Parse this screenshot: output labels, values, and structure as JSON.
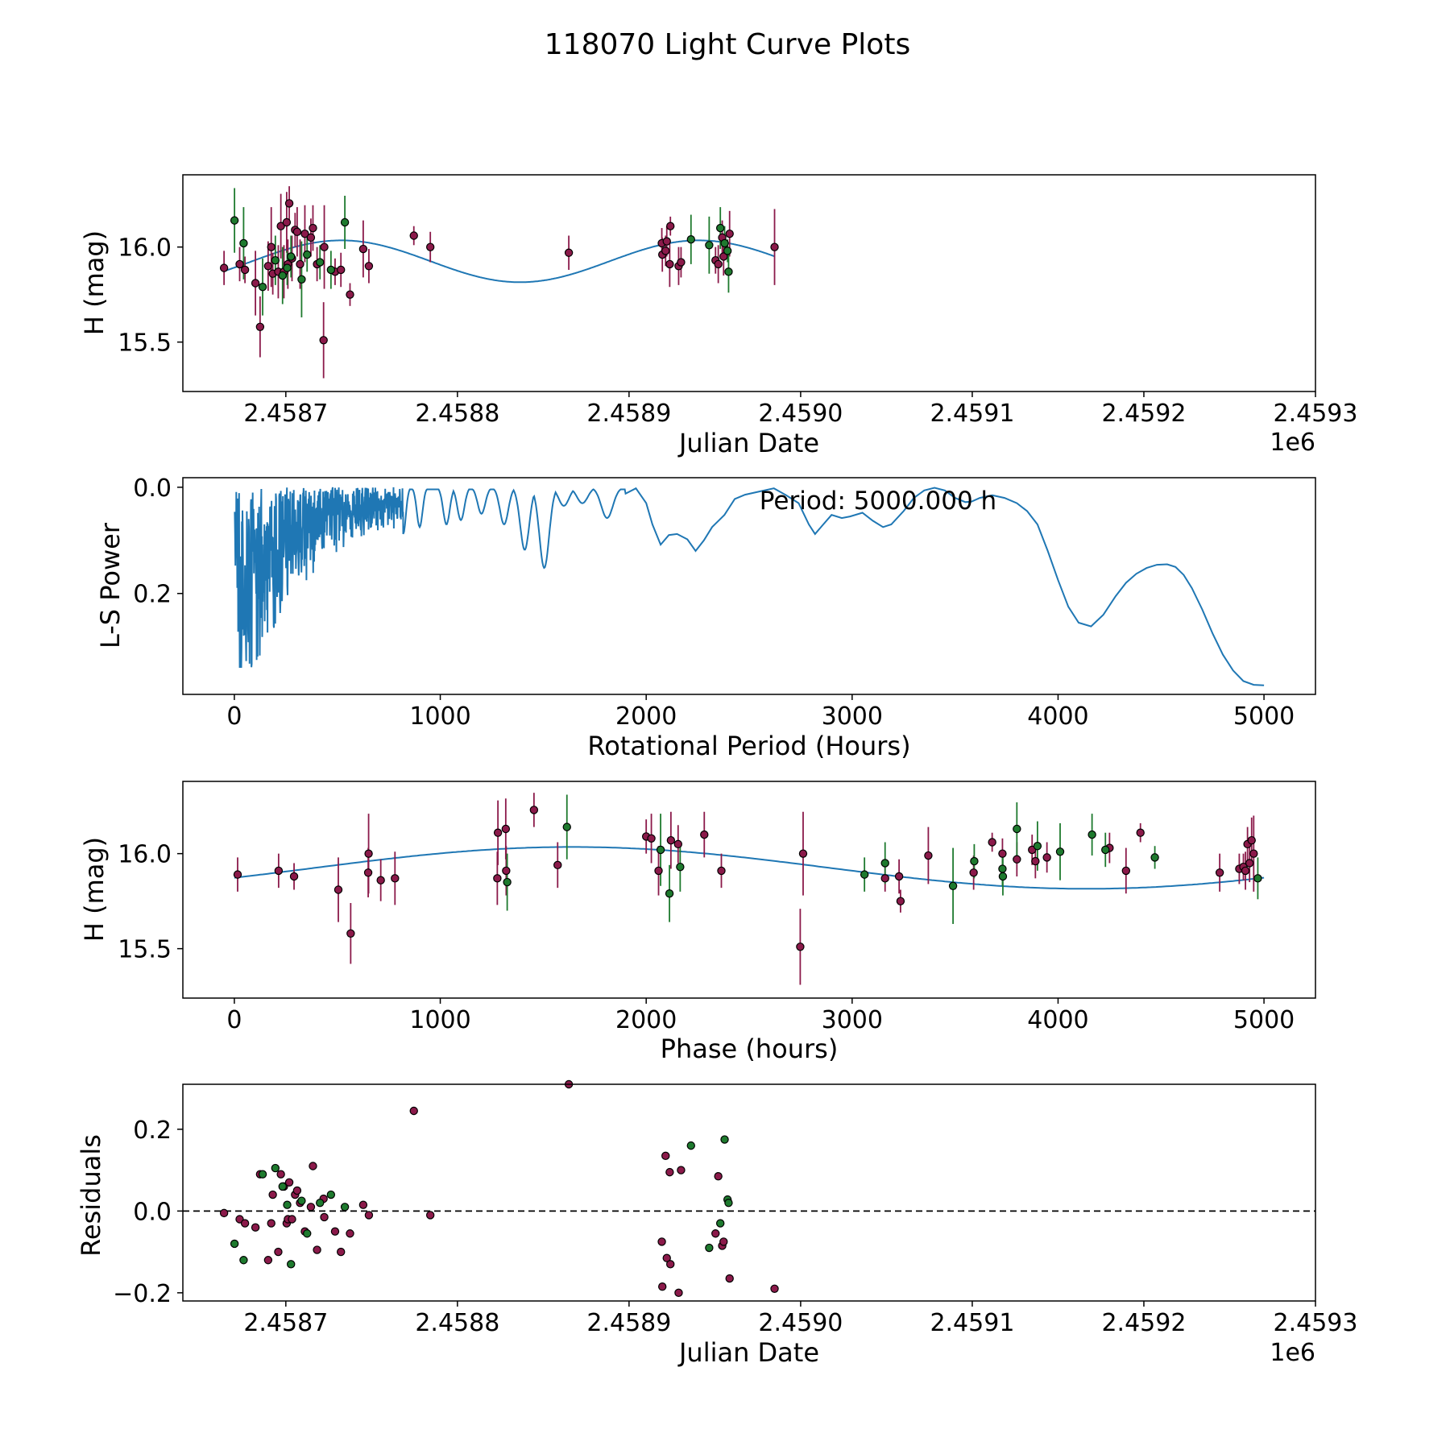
{
  "chart_data": {
    "title": "118070 Light Curve Plots",
    "colors": {
      "magenta": "#8b1a4a",
      "green": "#1e7a2e",
      "fit": "#1f77b4",
      "marker_edge": "#000000"
    },
    "fit_model": {
      "mean": 15.925,
      "amplitude": 0.11,
      "period_hours": 5000,
      "phase_offset_hours": 1640
    },
    "panels": [
      {
        "id": "lightcurve",
        "type": "scatter",
        "xlabel": "Julian Date",
        "ylabel": "H (mag)",
        "offset_label": "1e6",
        "xlim": [
          2.45864,
          2.4593
        ],
        "ylim": [
          16.38,
          15.24
        ],
        "xticks": [
          2.4587,
          2.4588,
          2.4589,
          2.459,
          2.4591,
          2.4592,
          2.4593
        ],
        "xtick_labels": [
          "2.4587",
          "2.4588",
          "2.4589",
          "2.4590",
          "2.4591",
          "2.4592",
          "2.4593"
        ],
        "yticks": [
          16.0,
          15.5
        ],
        "ytick_labels": [
          "16.0",
          "15.5"
        ]
      },
      {
        "id": "periodogram",
        "type": "line",
        "xlabel": "Rotational Period (Hours)",
        "ylabel": "L-S Power",
        "annotation": "Period: 5000.000 h",
        "xlim": [
          -250,
          5250
        ],
        "ylim": [
          -0.018,
          0.39
        ],
        "xticks": [
          0,
          1000,
          2000,
          3000,
          4000,
          5000
        ],
        "xtick_labels": [
          "0",
          "1000",
          "2000",
          "3000",
          "4000",
          "5000"
        ],
        "yticks": [
          0.0,
          0.2
        ],
        "ytick_labels": [
          "0.0",
          "0.2"
        ],
        "peaks": [
          [
            820,
            0.088
          ],
          [
            900,
            0.075
          ],
          [
            1030,
            0.07
          ],
          [
            1100,
            0.062
          ],
          [
            1200,
            0.05
          ],
          [
            1310,
            0.07
          ],
          [
            1410,
            0.118
          ],
          [
            1505,
            0.152
          ],
          [
            1600,
            0.035
          ],
          [
            1690,
            0.03
          ],
          [
            1810,
            0.058
          ],
          [
            2070,
            0.108
          ],
          [
            2240,
            0.12
          ],
          [
            2820,
            0.088
          ],
          [
            2990,
            0.06
          ],
          [
            3190,
            0.075
          ],
          [
            3580,
            0.028
          ],
          [
            4160,
            0.262
          ],
          [
            5000,
            0.373
          ]
        ],
        "smooth_curve": {
          "x": [
            1900,
            1950,
            2000,
            2030,
            2070,
            2110,
            2150,
            2200,
            2240,
            2280,
            2320,
            2380,
            2430,
            2480,
            2550,
            2620,
            2680,
            2740,
            2790,
            2820,
            2860,
            2900,
            2950,
            2990,
            3050,
            3100,
            3150,
            3190,
            3250,
            3300,
            3350,
            3400,
            3450,
            3500,
            3550,
            3580,
            3620,
            3680,
            3740,
            3800,
            3850,
            3900,
            3950,
            4000,
            4050,
            4100,
            4160,
            4220,
            4280,
            4330,
            4380,
            4430,
            4480,
            4530,
            4570,
            4610,
            4650,
            4700,
            4750,
            4800,
            4850,
            4900,
            4950,
            5000
          ],
          "y": [
            0.012,
            0.002,
            0.03,
            0.07,
            0.108,
            0.09,
            0.088,
            0.098,
            0.12,
            0.1,
            0.075,
            0.052,
            0.022,
            0.014,
            0.008,
            0.002,
            0.015,
            0.03,
            0.07,
            0.088,
            0.07,
            0.052,
            0.058,
            0.055,
            0.048,
            0.063,
            0.075,
            0.07,
            0.045,
            0.02,
            0.006,
            0.001,
            0.006,
            0.02,
            0.028,
            0.027,
            0.02,
            0.015,
            0.02,
            0.03,
            0.045,
            0.07,
            0.12,
            0.175,
            0.225,
            0.255,
            0.262,
            0.24,
            0.205,
            0.18,
            0.163,
            0.152,
            0.146,
            0.145,
            0.15,
            0.165,
            0.19,
            0.23,
            0.275,
            0.315,
            0.345,
            0.365,
            0.372,
            0.373
          ]
        }
      },
      {
        "id": "phased",
        "type": "scatter",
        "xlabel": "Phase (hours)",
        "ylabel": "H (mag)",
        "xlim": [
          -250,
          5250
        ],
        "ylim": [
          16.38,
          15.24
        ],
        "xticks": [
          0,
          1000,
          2000,
          3000,
          4000,
          5000
        ],
        "xtick_labels": [
          "0",
          "1000",
          "2000",
          "3000",
          "4000",
          "5000"
        ],
        "yticks": [
          16.0,
          15.5
        ],
        "ytick_labels": [
          "16.0",
          "15.5"
        ]
      },
      {
        "id": "residuals",
        "type": "scatter",
        "xlabel": "Julian Date",
        "ylabel": "Residuals",
        "offset_label": "1e6",
        "xlim": [
          2.45864,
          2.4593
        ],
        "ylim": [
          0.31,
          -0.22
        ],
        "xticks": [
          2.4587,
          2.4588,
          2.4589,
          2.459,
          2.4591,
          2.4592,
          2.4593
        ],
        "xtick_labels": [
          "2.4587",
          "2.4588",
          "2.4589",
          "2.4590",
          "2.4591",
          "2.4592",
          "2.4593"
        ],
        "yticks": [
          0.2,
          0.0,
          -0.2
        ],
        "ytick_labels": [
          "0.2",
          "0.0",
          "−0.2"
        ]
      }
    ],
    "observations": {
      "columns": [
        "julian_date_minus_2458000",
        "phase_hours",
        "H_mag",
        "error",
        "color",
        "residual"
      ],
      "rows": [
        [
          664.0,
          16,
          15.89,
          0.09,
          "m",
          -0.005
        ],
        [
          673.1,
          215,
          15.91,
          0.09,
          "m",
          -0.02
        ],
        [
          676.2,
          290,
          15.88,
          0.07,
          "m",
          -0.03
        ],
        [
          682.3,
          505,
          15.81,
          0.17,
          "m",
          -0.04
        ],
        [
          685.0,
          565,
          15.58,
          0.16,
          "m",
          0.09
        ],
        [
          689.7,
          650,
          15.9,
          0.13,
          "m",
          -0.12
        ],
        [
          691.5,
          652,
          16.0,
          0.21,
          "m",
          -0.03
        ],
        [
          692.4,
          711,
          15.86,
          0.11,
          "m",
          0.04
        ],
        [
          695.6,
          780,
          15.87,
          0.14,
          "m",
          -0.1
        ],
        [
          697.1,
          1280,
          16.11,
          0.17,
          "m",
          0.09
        ],
        [
          698.9,
          1277,
          15.87,
          0.14,
          "m",
          0.06
        ],
        [
          700.5,
          1318,
          16.13,
          0.16,
          "m",
          -0.03
        ],
        [
          701.2,
          1320,
          15.91,
          0.13,
          "m",
          -0.02
        ],
        [
          702.0,
          1455,
          16.23,
          0.09,
          "m",
          0.07
        ],
        [
          703.6,
          1570,
          15.94,
          0.12,
          "m",
          -0.02
        ],
        [
          705.4,
          2000,
          16.09,
          0.09,
          "m",
          0.04
        ],
        [
          706.6,
          2025,
          16.08,
          0.13,
          "m",
          0.05
        ],
        [
          708.3,
          2060,
          15.91,
          0.13,
          "m",
          0.02
        ],
        [
          711.1,
          2120,
          16.07,
          0.15,
          "m",
          -0.05
        ],
        [
          714.6,
          2155,
          16.05,
          0.1,
          "m",
          0.01
        ],
        [
          715.8,
          2282,
          16.1,
          0.12,
          "m",
          0.11
        ],
        [
          718.2,
          2365,
          15.91,
          0.09,
          "m",
          -0.095
        ],
        [
          722.0,
          2748,
          15.51,
          0.2,
          "m",
          0.03
        ],
        [
          722.4,
          2762,
          16.0,
          0.22,
          "m",
          -0.015
        ],
        [
          728.7,
          3160,
          15.87,
          0.07,
          "m",
          -0.05
        ],
        [
          732.1,
          3228,
          15.88,
          0.09,
          "m",
          -0.1
        ],
        [
          737.4,
          3235,
          15.75,
          0.06,
          "m",
          -0.055
        ],
        [
          745.1,
          3370,
          15.99,
          0.15,
          "m",
          0.015
        ],
        [
          748.4,
          3590,
          15.9,
          0.09,
          "m",
          -0.01
        ],
        [
          774.6,
          3680,
          16.06,
          0.05,
          "m",
          0.245
        ],
        [
          784.2,
          3730,
          16.0,
          0.08,
          "m",
          -0.01
        ],
        [
          864.9,
          3800,
          15.97,
          0.09,
          "m",
          0.31
        ],
        [
          919.1,
          3874,
          16.02,
          0.08,
          "m",
          -0.075
        ],
        [
          919.4,
          3890,
          15.96,
          0.09,
          "m",
          -0.185
        ],
        [
          921.3,
          3946,
          15.98,
          0.08,
          "m",
          0.135
        ],
        [
          922.0,
          4250,
          16.03,
          0.08,
          "m",
          -0.115
        ],
        [
          923.7,
          4330,
          15.91,
          0.12,
          "m",
          0.095
        ],
        [
          924.1,
          4400,
          16.11,
          0.05,
          "m",
          -0.13
        ],
        [
          928.9,
          4785,
          15.9,
          0.1,
          "m",
          -0.2
        ],
        [
          930.3,
          4880,
          15.92,
          0.08,
          "m",
          0.1
        ],
        [
          950.4,
          4900,
          15.93,
          0.07,
          "m",
          -0.055
        ],
        [
          952.0,
          4910,
          15.91,
          0.1,
          "m",
          0.085
        ],
        [
          954.3,
          4920,
          16.05,
          0.09,
          "m",
          -0.085
        ],
        [
          955.1,
          4930,
          15.95,
          0.1,
          "m",
          -0.075
        ],
        [
          958.6,
          4940,
          16.07,
          0.12,
          "m",
          -0.165
        ],
        [
          984.8,
          4950,
          16.0,
          0.2,
          "m",
          -0.19
        ],
        [
          670.1,
          1615,
          16.14,
          0.17,
          "g",
          -0.08
        ],
        [
          675.4,
          2070,
          16.02,
          0.19,
          "g",
          -0.12
        ],
        [
          686.5,
          2113,
          15.79,
          0.15,
          "g",
          0.09
        ],
        [
          693.9,
          2165,
          15.93,
          0.13,
          "g",
          0.105
        ],
        [
          698.1,
          1325,
          15.85,
          0.15,
          "g",
          0.06
        ],
        [
          700.8,
          3060,
          15.89,
          0.09,
          "g",
          0.015
        ],
        [
          703.0,
          3160,
          15.95,
          0.11,
          "g",
          -0.13
        ],
        [
          709.2,
          3490,
          15.83,
          0.2,
          "g",
          0.025
        ],
        [
          712.4,
          3593,
          15.96,
          0.09,
          "g",
          -0.055
        ],
        [
          719.9,
          3730,
          15.92,
          0.09,
          "g",
          0.02
        ],
        [
          726.3,
          3732,
          15.88,
          0.1,
          "g",
          0.04
        ],
        [
          734.4,
          3800,
          16.13,
          0.14,
          "g",
          0.01
        ],
        [
          936.1,
          3900,
          16.04,
          0.13,
          "g",
          0.16
        ],
        [
          946.7,
          4010,
          16.01,
          0.15,
          "g",
          -0.09
        ],
        [
          953.2,
          4165,
          16.1,
          0.11,
          "g",
          -0.03
        ],
        [
          955.7,
          4230,
          16.02,
          0.09,
          "g",
          0.175
        ],
        [
          957.4,
          4470,
          15.98,
          0.06,
          "g",
          0.028
        ],
        [
          958.0,
          4970,
          15.87,
          0.11,
          "g",
          0.02
        ]
      ]
    }
  }
}
